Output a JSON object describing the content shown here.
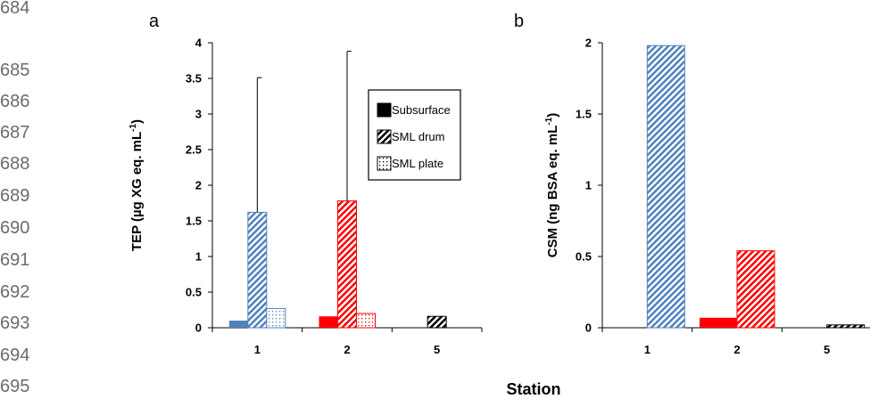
{
  "line_numbers": [
    "684",
    "685",
    "686",
    "687",
    "688",
    "689",
    "690",
    "691",
    "692",
    "693",
    "694",
    "695"
  ],
  "chart_data": [
    {
      "type": "bar",
      "panel_label": "a",
      "ylabel_main": "TEP (µg XG eq. mL",
      "ylabel_sup": "-1",
      "ylabel_close": ")",
      "categories": [
        "1",
        "2",
        "5"
      ],
      "ylim": [
        0,
        4
      ],
      "yticks": [
        "0",
        "0.5",
        "1",
        "1.5",
        "2",
        "2.5",
        "3",
        "3.5",
        "4"
      ],
      "series": [
        {
          "name": "Subsurface",
          "pattern": "solid",
          "values": [
            0.1,
            0.16,
            null
          ],
          "errors": [
            null,
            null,
            null
          ]
        },
        {
          "name": "SML drum",
          "pattern": "diag",
          "values": [
            1.62,
            1.78,
            0.16
          ],
          "errors": [
            1.89,
            2.1,
            null
          ]
        },
        {
          "name": "SML plate",
          "pattern": "dots",
          "values": [
            0.27,
            0.2,
            null
          ],
          "errors": [
            null,
            null,
            null
          ]
        }
      ],
      "station_colors": [
        "#4f81bd",
        "#ff0000",
        "#000000"
      ],
      "legend": {
        "placement": "upper-middle"
      }
    },
    {
      "type": "bar",
      "panel_label": "b",
      "ylabel_main": "CSM (ng BSA eq. mL",
      "ylabel_sup": "-1",
      "ylabel_close": ")",
      "categories": [
        "1",
        "2",
        "5"
      ],
      "ylim": [
        0,
        2
      ],
      "yticks": [
        "0",
        "0.5",
        "1",
        "1.5",
        "2"
      ],
      "series": [
        {
          "name": "Subsurface",
          "pattern": "solid",
          "values": [
            null,
            0.07,
            null
          ]
        },
        {
          "name": "SML drum",
          "pattern": "diag",
          "values": [
            1.98,
            0.54,
            0.02
          ]
        }
      ],
      "station_colors": [
        "#4f81bd",
        "#ff0000",
        "#000000"
      ]
    }
  ],
  "shared_xlabel": "Station"
}
